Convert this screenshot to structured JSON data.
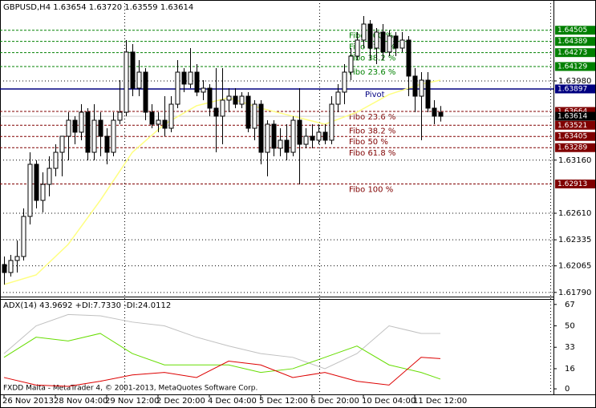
{
  "chart_data": [
    {
      "type": "candlestick",
      "title": "GBPUSD,H4 1.63654 1.63720 1.63559 1.63614",
      "ylim": [
        1.61747,
        1.64818
      ],
      "yticks": [
        {
          "value": 1.6398,
          "label": "1.63980"
        },
        {
          "value": 1.6316,
          "label": "1.63160"
        },
        {
          "value": 1.6261,
          "label": "1.62610"
        },
        1.62335,
        1.62065,
        {
          "value": 1.6179,
          "label": "1.61790"
        }
      ],
      "xticks": [
        {
          "value": 0,
          "label": "26 Nov 2013"
        },
        {
          "value": 8,
          "label": "28 Nov 04:00"
        },
        {
          "value": 16,
          "label": "29 Nov 12:00"
        },
        {
          "value": 24,
          "label": "2 Dec 20:00"
        },
        {
          "value": 32,
          "label": "4 Dec 04:00"
        },
        {
          "value": 40,
          "label": "5 Dec 12:00"
        },
        {
          "value": 48,
          "label": "6 Dec 20:00"
        },
        {
          "value": 56,
          "label": "10 Dec 04:00"
        },
        {
          "value": 64,
          "label": "11 Dec 12:00"
        }
      ],
      "open": [
        1.62079,
        1.61996,
        1.62121,
        1.62162,
        1.62577,
        1.63117,
        1.62743,
        1.62909,
        1.63075,
        1.63241,
        1.63407,
        1.63573,
        1.63449,
        1.63656,
        1.63241,
        1.63573,
        1.63407,
        1.63241,
        1.63573,
        1.63656,
        1.64279,
        1.63905,
        1.64071,
        1.63656,
        1.63532,
        1.63573,
        1.6349,
        1.63739,
        1.64071,
        1.63947,
        1.64071,
        1.63864,
        1.63905,
        1.63698,
        1.63615,
        1.63781,
        1.63822,
        1.63739,
        1.63822,
        1.6349,
        1.63739,
        1.63241,
        1.63532,
        1.63283,
        1.63366,
        1.63241,
        1.63573,
        1.63324,
        1.63407,
        1.63366,
        1.63449,
        1.63366,
        1.63739,
        1.63864,
        1.64071,
        1.64237,
        1.64403,
        1.64569,
        1.6432,
        1.64486,
        1.64279,
        1.64445,
        1.6432,
        1.64403,
        1.6403,
        1.63822,
        1.63988,
        1.63698,
        1.63654
      ],
      "high": [
        1.62162,
        1.62179,
        1.62328,
        1.6266,
        1.63241,
        1.63158,
        1.63034,
        1.632,
        1.63324,
        1.63407,
        1.63656,
        1.63615,
        1.63739,
        1.63698,
        1.63739,
        1.63656,
        1.6349,
        1.63656,
        1.63988,
        1.64403,
        1.64362,
        1.64196,
        1.64113,
        1.63739,
        1.63656,
        1.63822,
        1.63822,
        1.64196,
        1.64113,
        1.6432,
        1.64154,
        1.63988,
        1.63947,
        1.64113,
        1.64113,
        1.63905,
        1.63905,
        1.63864,
        1.63864,
        1.63781,
        1.63781,
        1.63573,
        1.63573,
        1.6349,
        1.63532,
        1.63615,
        1.63905,
        1.6349,
        1.63532,
        1.63532,
        1.63532,
        1.63822,
        1.63947,
        1.64154,
        1.6432,
        1.64486,
        1.64652,
        1.64611,
        1.64528,
        1.64569,
        1.64503,
        1.64486,
        1.64486,
        1.64445,
        1.64113,
        1.64071,
        1.64071,
        1.63781,
        1.6372
      ],
      "low": [
        1.61872,
        1.61955,
        1.61996,
        1.62121,
        1.62494,
        1.6266,
        1.62619,
        1.62785,
        1.62992,
        1.62992,
        1.63158,
        1.63324,
        1.63366,
        1.63158,
        1.63158,
        1.632,
        1.63117,
        1.632,
        1.63532,
        1.63615,
        1.63822,
        1.63822,
        1.63573,
        1.6349,
        1.63449,
        1.63407,
        1.63449,
        1.63698,
        1.63864,
        1.63905,
        1.63822,
        1.63781,
        1.63615,
        1.63241,
        1.63324,
        1.63656,
        1.63698,
        1.63698,
        1.63449,
        1.63366,
        1.63117,
        1.62992,
        1.632,
        1.632,
        1.63158,
        1.632,
        1.62909,
        1.63283,
        1.63283,
        1.63324,
        1.63324,
        1.63324,
        1.63656,
        1.63739,
        1.63988,
        1.64196,
        1.6432,
        1.64196,
        1.64154,
        1.64196,
        1.64237,
        1.64237,
        1.64279,
        1.63822,
        1.63656,
        1.63366,
        1.63656,
        1.63532,
        1.63559
      ],
      "close": [
        1.61996,
        1.62121,
        1.62162,
        1.62577,
        1.63117,
        1.62743,
        1.62909,
        1.63075,
        1.63241,
        1.63407,
        1.63573,
        1.63449,
        1.63656,
        1.63241,
        1.63573,
        1.63407,
        1.63241,
        1.63573,
        1.63656,
        1.64279,
        1.63905,
        1.64071,
        1.63656,
        1.63532,
        1.63573,
        1.6349,
        1.63739,
        1.64071,
        1.63947,
        1.64071,
        1.63864,
        1.63905,
        1.63698,
        1.63615,
        1.63781,
        1.63822,
        1.63739,
        1.63822,
        1.6349,
        1.63739,
        1.63241,
        1.63532,
        1.63283,
        1.63366,
        1.63241,
        1.63573,
        1.63324,
        1.63407,
        1.63366,
        1.63449,
        1.63366,
        1.63739,
        1.63864,
        1.64071,
        1.64237,
        1.64403,
        1.64569,
        1.6432,
        1.64486,
        1.64279,
        1.64445,
        1.6432,
        1.64403,
        1.6403,
        1.63822,
        1.63988,
        1.63698,
        1.63615,
        1.63614
      ],
      "colors": {
        "up": "#ffffff",
        "down": "#000000",
        "wick": "#000000"
      },
      "ma": {
        "color": "#ffff80",
        "x": [
          0,
          5,
          10,
          15,
          20,
          25,
          30,
          35,
          40,
          45,
          50,
          55,
          60,
          65,
          68
        ],
        "values": [
          1.61872,
          1.61971,
          1.62287,
          1.62743,
          1.63241,
          1.63532,
          1.63723,
          1.63806,
          1.63698,
          1.63615,
          1.63532,
          1.63656,
          1.63839,
          1.63947,
          1.63988
        ]
      },
      "levels": [
        {
          "label": "Fibo 100 %",
          "value": 1.64505,
          "color": "#008000"
        },
        {
          "label": "Fibo 61.8 %",
          "value": 1.64389,
          "color": "#008000"
        },
        {
          "label": "Fibo 38.2 %",
          "value": 1.64273,
          "color": "#008000"
        },
        {
          "label": "Fibo 23.6 %",
          "value": 1.64129,
          "color": "#008000"
        },
        {
          "label": "Pivot",
          "value": 1.63897,
          "color": "#000080"
        },
        {
          "label": "Fibo 23.6 %",
          "value": 1.63664,
          "color": "#800000"
        },
        {
          "label": "Fibo 38.2 %",
          "value": 1.63521,
          "color": "#800000"
        },
        {
          "label": "Fibo 50 %",
          "value": 1.63405,
          "color": "#800000"
        },
        {
          "label": "Fibo 61.8 %",
          "value": 1.63289,
          "color": "#800000"
        },
        {
          "label": "Fibo 100 %",
          "value": 1.62913,
          "color": "#800000"
        }
      ],
      "bid": 1.63614
    },
    {
      "type": "line",
      "title": "ADX(14) 43.9692 +DI:7.7330 -DI:24.0112",
      "ylim": [
        -4.4,
        70.7
      ],
      "yticks": [
        67,
        50,
        33,
        16,
        0
      ],
      "x": [
        0,
        5,
        10,
        15,
        20,
        25,
        30,
        35,
        40,
        45,
        50,
        55,
        60,
        65,
        68
      ],
      "series": [
        {
          "color": "#c0c0c0",
          "values": [
            28,
            50,
            59,
            58,
            53,
            50,
            41,
            34,
            28,
            25,
            16,
            28,
            50,
            44,
            43.9692
          ]
        },
        {
          "color": "#66dd00",
          "values": [
            25,
            41,
            38,
            44,
            28,
            19,
            19,
            19,
            13,
            16,
            25,
            34,
            19,
            13,
            7.733
          ]
        },
        {
          "color": "#dd0000",
          "values": [
            9,
            3,
            2,
            6,
            11,
            13,
            9,
            22,
            19,
            9,
            13,
            6,
            3,
            25,
            24.0112
          ]
        }
      ],
      "note": "FXDD Malta - MetaTrader 4, © 2001-2013, MetaQuotes Software Corp."
    }
  ]
}
